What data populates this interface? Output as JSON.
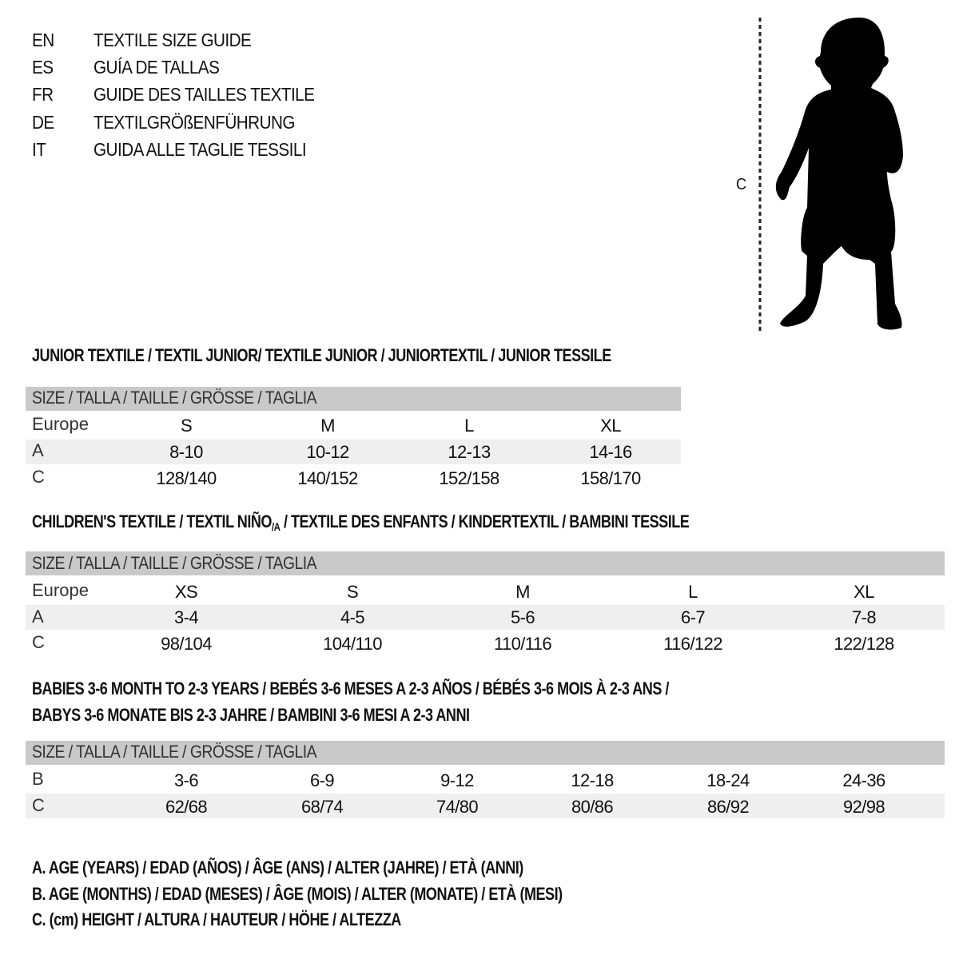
{
  "languages": [
    {
      "code": "EN",
      "text": "TEXTILE SIZE GUIDE"
    },
    {
      "code": "ES",
      "text": "GUÍA DE TALLAS"
    },
    {
      "code": "FR",
      "text": "GUIDE DES TAILLES TEXTILE"
    },
    {
      "code": "DE",
      "text": "TEXTILGRÖßENFÜHRUNG"
    },
    {
      "code": "IT",
      "text": "GUIDA ALLE TAGLIE TESSILI"
    }
  ],
  "figure": {
    "height_label": "C",
    "icon": "child-silhouette"
  },
  "size_header": "SIZE / TALLA / TAILLE / GRÖSSE / TAGLIA",
  "junior": {
    "title": "JUNIOR TEXTILE / TEXTIL JUNIOR/ TEXTILE JUNIOR / JUNIORTEXTIL / JUNIOR TESSILE",
    "rows": [
      {
        "label": "Europe",
        "values": [
          "S",
          "M",
          "L",
          "XL"
        ]
      },
      {
        "label": "A",
        "values": [
          "8-10",
          "10-12",
          "12-13",
          "14-16"
        ]
      },
      {
        "label": "C",
        "values": [
          "128/140",
          "140/152",
          "152/158",
          "158/170"
        ]
      }
    ]
  },
  "children": {
    "title_a": "CHILDREN'S TEXTILE / TEXTIL NIÑO",
    "title_sub": "/A",
    "title_b": " / TEXTILE DES ENFANTS / KINDERTEXTIL / BAMBINI TESSILE",
    "rows": [
      {
        "label": "Europe",
        "values": [
          "XS",
          "S",
          "M",
          "L",
          "XL"
        ]
      },
      {
        "label": "A",
        "values": [
          "3-4",
          "4-5",
          "5-6",
          "6-7",
          "7-8"
        ]
      },
      {
        "label": "C",
        "values": [
          "98/104",
          "104/110",
          "110/116",
          "116/122",
          "122/128"
        ]
      }
    ]
  },
  "babies": {
    "title_line1": "BABIES 3-6 MONTH TO 2-3 YEARS / BEBÉS 3-6 MESES A 2-3 AÑOS / BÉBÉS 3-6 MOIS À 2-3 ANS /",
    "title_line2": "BABYS 3-6 MONATE BIS 2-3 JAHRE / BAMBINI 3-6 MESI A 2-3 ANNI",
    "rows": [
      {
        "label": "B",
        "values": [
          "3-6",
          "6-9",
          "9-12",
          "12-18",
          "18-24",
          "24-36"
        ]
      },
      {
        "label": "C",
        "values": [
          "62/68",
          "68/74",
          "74/80",
          "80/86",
          "86/92",
          "92/98"
        ]
      }
    ]
  },
  "legend": [
    "A. AGE (YEARS) / EDAD (AÑOS) / ÂGE (ANS) / ALTER (JAHRE) / ETÀ (ANNI)",
    "B. AGE (MONTHS) / EDAD (MESES) / ÂGE (MOIS) / ALTER (MONATE) / ETÀ (MESI)",
    "C. (cm) HEIGHT / ALTURA / HAUTEUR / HÖHE / ALTEZZA"
  ],
  "colors": {
    "header_band": "#c9c9c9",
    "row_shade": "#efefef",
    "text": "#111111"
  }
}
